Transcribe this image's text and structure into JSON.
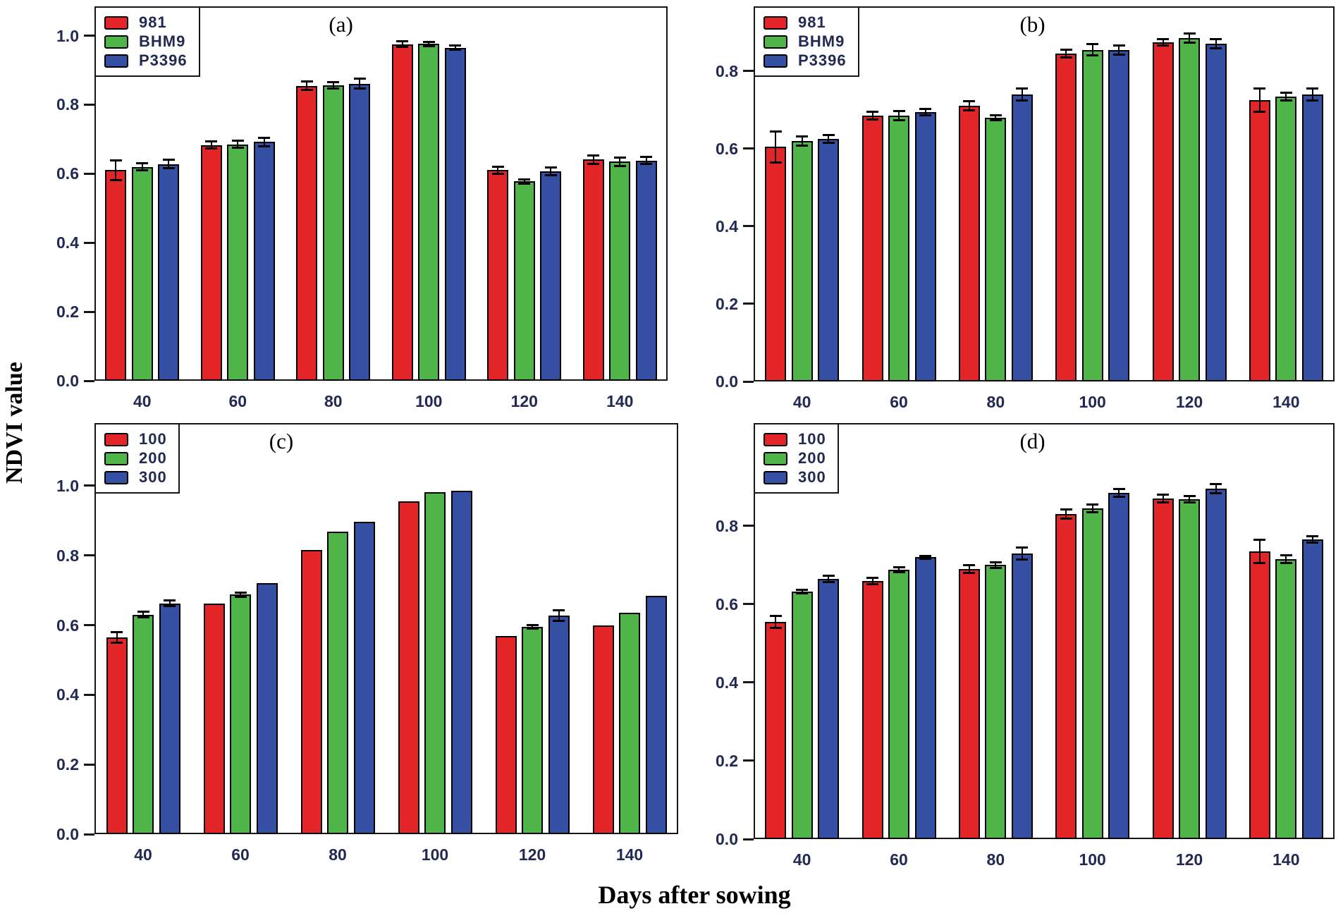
{
  "figure": {
    "ylabel": "NDVI value",
    "xlabel": "Days after sowing"
  },
  "colors": {
    "red": "#e42528",
    "green": "#4fb548",
    "blue": "#3550a2",
    "axis": "#161616",
    "tick_text": "#222a54"
  },
  "chart_data": [
    {
      "id": "a",
      "type": "bar",
      "title": "(a)",
      "categories": [
        "40",
        "60",
        "80",
        "100",
        "120",
        "140"
      ],
      "yticks": [
        0.0,
        0.2,
        0.4,
        0.6,
        0.8,
        1.0
      ],
      "ylim": [
        0,
        1.085
      ],
      "legend_position": "top-left",
      "grid": false,
      "series": [
        {
          "name": "981",
          "color": "red",
          "values": [
            0.61,
            0.683,
            0.855,
            0.975,
            0.61,
            0.641
          ],
          "errors": [
            0.028,
            0.01,
            0.012,
            0.008,
            0.01,
            0.012
          ]
        },
        {
          "name": "BHM9",
          "color": "green",
          "values": [
            0.62,
            0.685,
            0.856,
            0.976,
            0.578,
            0.635
          ],
          "errors": [
            0.01,
            0.01,
            0.01,
            0.006,
            0.006,
            0.012
          ]
        },
        {
          "name": "P3396",
          "color": "blue",
          "values": [
            0.628,
            0.692,
            0.861,
            0.965,
            0.607,
            0.638
          ],
          "errors": [
            0.012,
            0.012,
            0.015,
            0.006,
            0.012,
            0.01
          ]
        }
      ]
    },
    {
      "id": "b",
      "type": "bar",
      "title": "(b)",
      "categories": [
        "40",
        "60",
        "80",
        "100",
        "120",
        "140"
      ],
      "yticks": [
        0.0,
        0.2,
        0.4,
        0.6,
        0.8
      ],
      "ylim": [
        0,
        0.967
      ],
      "legend_position": "top-left",
      "grid": false,
      "series": [
        {
          "name": "981",
          "color": "red",
          "values": [
            0.605,
            0.685,
            0.71,
            0.845,
            0.875,
            0.725
          ],
          "errors": [
            0.04,
            0.01,
            0.012,
            0.01,
            0.008,
            0.03
          ]
        },
        {
          "name": "BHM9",
          "color": "green",
          "values": [
            0.62,
            0.685,
            0.68,
            0.855,
            0.885,
            0.735
          ],
          "errors": [
            0.012,
            0.012,
            0.006,
            0.015,
            0.012,
            0.01
          ]
        },
        {
          "name": "P3396",
          "color": "blue",
          "values": [
            0.625,
            0.695,
            0.74,
            0.855,
            0.87,
            0.74
          ],
          "errors": [
            0.01,
            0.008,
            0.015,
            0.012,
            0.012,
            0.015
          ]
        }
      ]
    },
    {
      "id": "c",
      "type": "bar",
      "title": "(c)",
      "categories": [
        "40",
        "60",
        "80",
        "100",
        "120",
        "140"
      ],
      "yticks": [
        0.0,
        0.2,
        0.4,
        0.6,
        0.8,
        1.0
      ],
      "ylim": [
        0,
        1.18
      ],
      "legend_position": "top-left",
      "grid": false,
      "series": [
        {
          "name": "100",
          "color": "red",
          "values": [
            0.565,
            0.662,
            0.815,
            0.955,
            0.568,
            0.6
          ],
          "errors": [
            0.015,
            0,
            0,
            0,
            0,
            0
          ]
        },
        {
          "name": "200",
          "color": "green",
          "values": [
            0.63,
            0.688,
            0.868,
            0.982,
            0.595,
            0.635
          ],
          "errors": [
            0.008,
            0.006,
            0,
            0,
            0.006,
            0
          ]
        },
        {
          "name": "300",
          "color": "blue",
          "values": [
            0.662,
            0.72,
            0.897,
            0.985,
            0.628,
            0.685
          ],
          "errors": [
            0.008,
            0,
            0,
            0,
            0.015,
            0
          ]
        }
      ]
    },
    {
      "id": "d",
      "type": "bar",
      "title": "(d)",
      "categories": [
        "40",
        "60",
        "80",
        "100",
        "120",
        "140"
      ],
      "yticks": [
        0.0,
        0.2,
        0.4,
        0.6,
        0.8
      ],
      "ylim": [
        0,
        1.063
      ],
      "legend_position": "top-left",
      "grid": false,
      "series": [
        {
          "name": "100",
          "color": "red",
          "values": [
            0.555,
            0.66,
            0.69,
            0.83,
            0.87,
            0.735
          ],
          "errors": [
            0.015,
            0.008,
            0.01,
            0.012,
            0.01,
            0.03
          ]
        },
        {
          "name": "200",
          "color": "green",
          "values": [
            0.632,
            0.688,
            0.7,
            0.845,
            0.868,
            0.715
          ],
          "errors": [
            0.005,
            0.006,
            0.008,
            0.01,
            0.008,
            0.01
          ]
        },
        {
          "name": "300",
          "color": "blue",
          "values": [
            0.665,
            0.72,
            0.73,
            0.885,
            0.895,
            0.765
          ],
          "errors": [
            0.008,
            0.004,
            0.015,
            0.01,
            0.012,
            0.008
          ]
        }
      ]
    }
  ]
}
